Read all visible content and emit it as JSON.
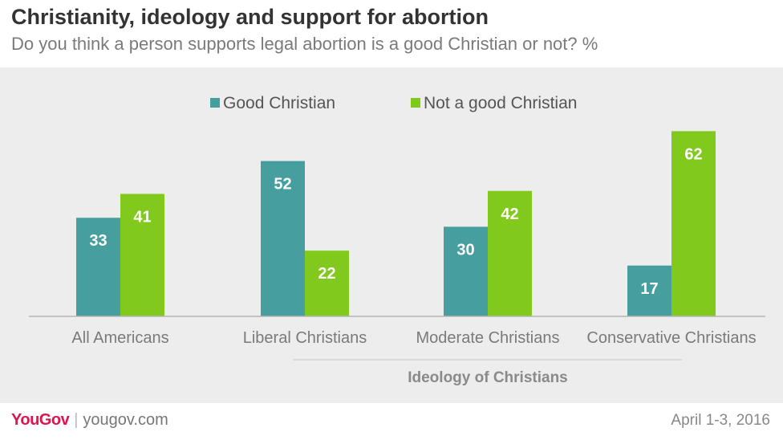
{
  "title": "Christianity, ideology and support for abortion",
  "subtitle": "Do you think a person supports legal abortion is a good Christian or not? %",
  "chart_data": {
    "type": "bar",
    "categories": [
      "All Americans",
      "Liberal Christians",
      "Moderate Christians",
      "Conservative Christians"
    ],
    "series": [
      {
        "name": "Good Christian",
        "values": [
          33,
          52,
          30,
          17
        ],
        "color": "#469e9e"
      },
      {
        "name": "Not a good Christian",
        "values": [
          41,
          22,
          42,
          62
        ],
        "color": "#82c91e"
      }
    ],
    "group_label": "Ideology of Christians",
    "legend_position": "top-center",
    "ylim": [
      0,
      70
    ],
    "grid": false,
    "data_labels": true
  },
  "footer": {
    "brand": "YouGov",
    "site": "yougov.com",
    "date": "April 1-3, 2016"
  }
}
